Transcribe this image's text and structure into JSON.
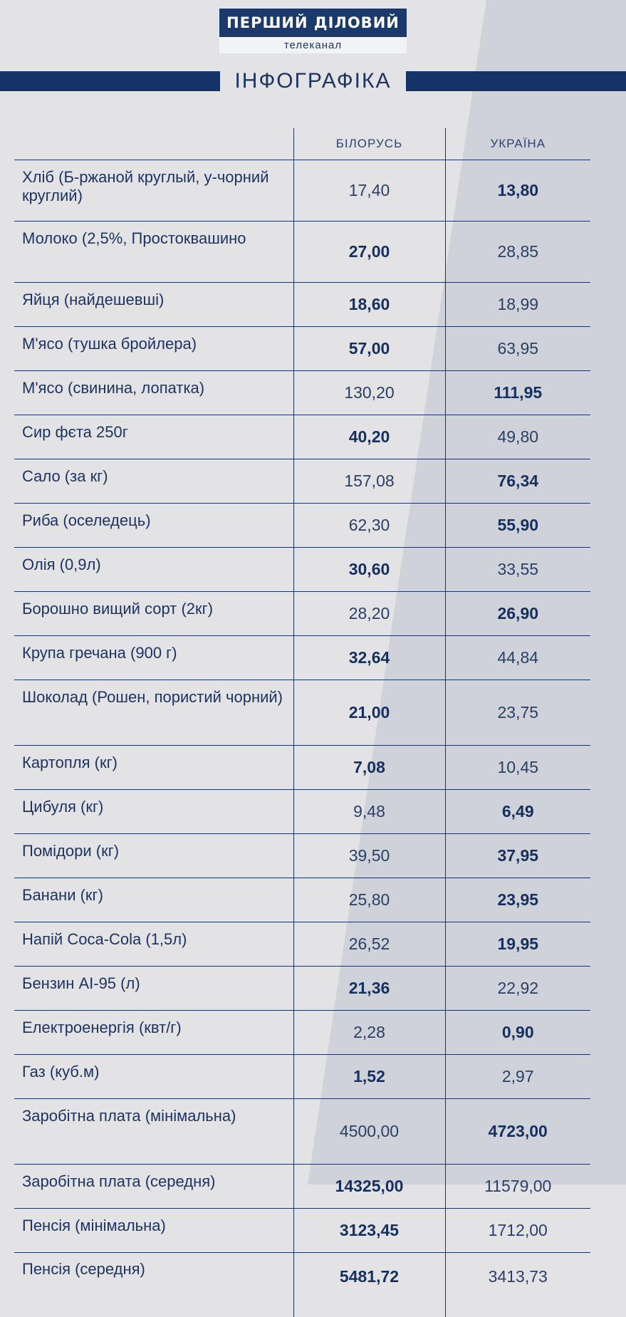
{
  "brand": {
    "logo_top": "ПЕРШИЙ ДІЛОВИЙ",
    "logo_bottom": "телеканал",
    "colors": {
      "primary": "#143366",
      "background": "#e3e3e5",
      "background_diagonal": "#cfd2d8"
    }
  },
  "section_title": "ІНФОГРАФІКА",
  "table": {
    "columns": [
      "",
      "БІЛОРУСЬ",
      "УКРАЇНА"
    ],
    "rows": [
      {
        "name": "Хліб (Б-ржаной круглый, у-чорний круглий)",
        "by": "17,40",
        "ua": "13,80",
        "best": "ua"
      },
      {
        "name": "Молоко (2,5%, Простоквашино",
        "by": "27,00",
        "ua": "28,85",
        "best": "by"
      },
      {
        "name": "Яйця (найдешевші)",
        "by": "18,60",
        "ua": "18,99",
        "best": "by"
      },
      {
        "name": "М'ясо (тушка бройлера)",
        "by": "57,00",
        "ua": "63,95",
        "best": "by"
      },
      {
        "name": "М'ясо (свинина, лопатка)",
        "by": "130,20",
        "ua": "111,95",
        "best": "ua"
      },
      {
        "name": "Сир фєта 250г",
        "by": "40,20",
        "ua": "49,80",
        "best": "by"
      },
      {
        "name": "Сало (за кг)",
        "by": "157,08",
        "ua": "76,34",
        "best": "ua"
      },
      {
        "name": "Риба (оселедець)",
        "by": "62,30",
        "ua": "55,90",
        "best": "ua"
      },
      {
        "name": "Олія (0,9л)",
        "by": "30,60",
        "ua": "33,55",
        "best": "by"
      },
      {
        "name": "Борошно вищий сорт (2кг)",
        "by": "28,20",
        "ua": "26,90",
        "best": "ua"
      },
      {
        "name": "Крупа гречана (900 г)",
        "by": "32,64",
        "ua": "44,84",
        "best": "by"
      },
      {
        "name": "Шоколад (Рошен, пористий чорний)",
        "by": "21,00",
        "ua": "23,75",
        "best": "by"
      },
      {
        "name": "Картопля (кг)",
        "by": "7,08",
        "ua": "10,45",
        "best": "by"
      },
      {
        "name": "Цибуля (кг)",
        "by": "9,48",
        "ua": "6,49",
        "best": "ua"
      },
      {
        "name": "Помідори (кг)",
        "by": "39,50",
        "ua": "37,95",
        "best": "ua"
      },
      {
        "name": "Банани (кг)",
        "by": "25,80",
        "ua": "23,95",
        "best": "ua"
      },
      {
        "name": "Напій Coca-Cola (1,5л)",
        "by": "26,52",
        "ua": "19,95",
        "best": "ua"
      },
      {
        "name": "Бензин АІ-95 (л)",
        "by": "21,36",
        "ua": "22,92",
        "best": "by"
      },
      {
        "name": "Електроенергія (квт/г)",
        "by": "2,28",
        "ua": "0,90",
        "best": "ua"
      },
      {
        "name": "Газ (куб.м)",
        "by": "1,52",
        "ua": "2,97",
        "best": "by"
      },
      {
        "name": "Заробітна плата (мінімальна)",
        "by": "4500,00",
        "ua": "4723,00",
        "best": "ua"
      },
      {
        "name": "Заробітна плата (середня)",
        "by": "14325,00",
        "ua": "11579,00",
        "best": "by"
      },
      {
        "name": "Пенсія (мінімальна)",
        "by": "3123,45",
        "ua": "1712,00",
        "best": "by"
      },
      {
        "name": "Пенсія (середня)",
        "by": "5481,72",
        "ua": "3413,73",
        "best": "by"
      }
    ]
  }
}
